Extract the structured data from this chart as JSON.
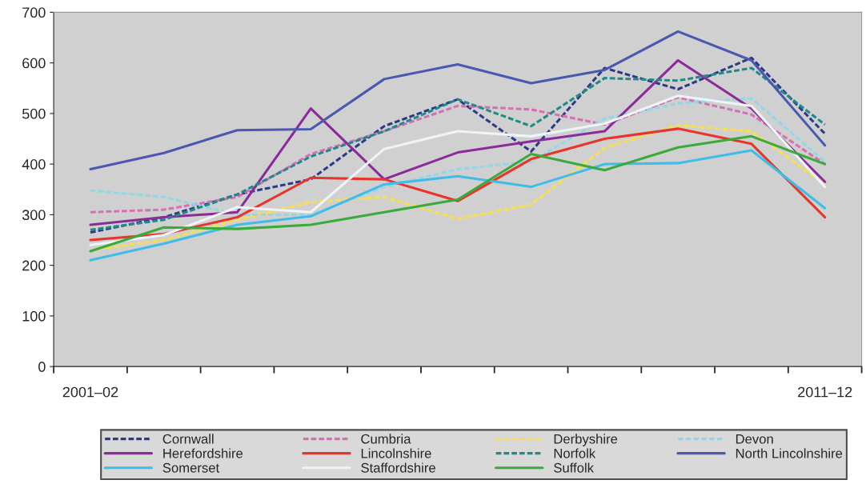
{
  "chart_data": {
    "type": "line",
    "categories": [
      "2001–02",
      null,
      null,
      null,
      null,
      null,
      null,
      null,
      null,
      null,
      "2011–12"
    ],
    "ylim": [
      0,
      700
    ],
    "yticks": [
      0,
      100,
      200,
      300,
      400,
      500,
      600,
      700
    ],
    "grid": false,
    "legend": "bottom",
    "marker": "none",
    "series": [
      {
        "name": "Cornwall",
        "color": "#2e3a87",
        "line_style": "dashed",
        "values": [
          265,
          295,
          340,
          370,
          475,
          528,
          425,
          590,
          548,
          610,
          460
        ]
      },
      {
        "name": "Cumbria",
        "color": "#d86fb5",
        "line_style": "dashed",
        "values": [
          305,
          310,
          335,
          420,
          465,
          515,
          508,
          478,
          532,
          498,
          400
        ]
      },
      {
        "name": "Derbyshire",
        "color": "#f7e04a",
        "line_style": "dashed",
        "values": [
          230,
          250,
          290,
          325,
          335,
          292,
          320,
          432,
          477,
          465,
          360
        ]
      },
      {
        "name": "Devon",
        "color": "#8fd8ea",
        "line_style": "dashed",
        "values": [
          348,
          335,
          300,
          300,
          355,
          390,
          405,
          490,
          520,
          530,
          405
        ]
      },
      {
        "name": "Herefordshire",
        "color": "#8b2b9a",
        "line_style": "solid",
        "values": [
          280,
          295,
          305,
          510,
          370,
          423,
          445,
          465,
          605,
          510,
          365
        ]
      },
      {
        "name": "Lincolnshire",
        "color": "#e8352a",
        "line_style": "solid",
        "values": [
          250,
          262,
          295,
          373,
          370,
          327,
          410,
          450,
          470,
          440,
          295
        ]
      },
      {
        "name": "Norfolk",
        "color": "#1f8a8a",
        "line_style": "dashed",
        "values": [
          270,
          290,
          340,
          415,
          465,
          528,
          475,
          570,
          565,
          590,
          478
        ]
      },
      {
        "name": "North Lincolnshire",
        "color": "#4a58b0",
        "line_style": "solid",
        "values": [
          390,
          422,
          467,
          469,
          568,
          597,
          560,
          586,
          662,
          605,
          437
        ]
      },
      {
        "name": "Somerset",
        "color": "#3fbde8",
        "line_style": "solid",
        "values": [
          210,
          243,
          280,
          297,
          360,
          376,
          355,
          400,
          402,
          427,
          313
        ]
      },
      {
        "name": "Staffordshire",
        "color": "#eef4f8",
        "line_style": "solid",
        "values": [
          240,
          260,
          315,
          305,
          430,
          465,
          455,
          480,
          535,
          515,
          355
        ]
      },
      {
        "name": "Suffolk",
        "color": "#3aaa3a",
        "line_style": "solid",
        "values": [
          228,
          275,
          272,
          280,
          305,
          330,
          420,
          388,
          433,
          455,
          400
        ]
      }
    ]
  }
}
